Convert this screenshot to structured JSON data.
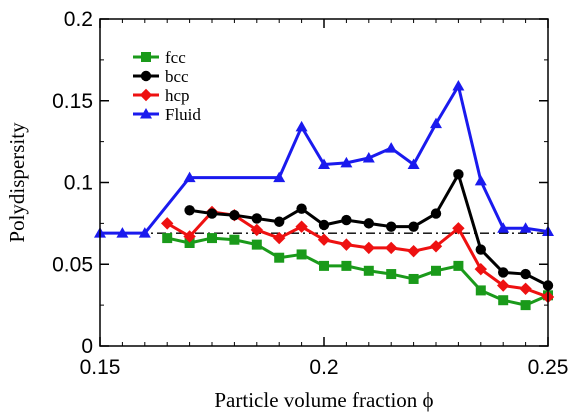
{
  "chart_data": {
    "type": "line",
    "xlabel": "Particle volume fraction ϕ",
    "ylabel": "Polydispersity",
    "xlim": [
      0.15,
      0.25
    ],
    "ylim": [
      0,
      0.2
    ],
    "x_ticks": [
      0.15,
      0.2,
      0.25
    ],
    "x_tick_labels": [
      "0.15",
      "0.2",
      "0.25"
    ],
    "y_ticks": [
      0,
      0.05,
      0.1,
      0.15,
      0.2
    ],
    "y_tick_labels": [
      "0",
      "0.05",
      "0.1",
      "0.15",
      "0.2"
    ],
    "grid": false,
    "legend_position": "top-left",
    "reference_line": {
      "y": 0.069,
      "style": "dash-dot",
      "color": "#000000"
    },
    "series": [
      {
        "name": "fcc",
        "color": "#1a9a1a",
        "marker": "square",
        "x": [
          0.165,
          0.17,
          0.175,
          0.18,
          0.185,
          0.19,
          0.195,
          0.2,
          0.205,
          0.21,
          0.215,
          0.22,
          0.225,
          0.23,
          0.235,
          0.24,
          0.245,
          0.25
        ],
        "y": [
          0.066,
          0.063,
          0.066,
          0.065,
          0.062,
          0.054,
          0.056,
          0.049,
          0.049,
          0.046,
          0.044,
          0.041,
          0.046,
          0.049,
          0.034,
          0.028,
          0.025,
          0.031
        ]
      },
      {
        "name": "bcc",
        "color": "#000000",
        "marker": "circle",
        "x": [
          0.17,
          0.175,
          0.18,
          0.185,
          0.19,
          0.195,
          0.2,
          0.205,
          0.21,
          0.215,
          0.22,
          0.225,
          0.23,
          0.235,
          0.24,
          0.245,
          0.25
        ],
        "y": [
          0.083,
          0.081,
          0.08,
          0.078,
          0.076,
          0.084,
          0.074,
          0.077,
          0.075,
          0.073,
          0.073,
          0.081,
          0.105,
          0.059,
          0.045,
          0.044,
          0.037
        ]
      },
      {
        "name": "hcp",
        "color": "#ee1111",
        "marker": "diamond",
        "x": [
          0.165,
          0.17,
          0.175,
          0.18,
          0.185,
          0.19,
          0.195,
          0.2,
          0.205,
          0.21,
          0.215,
          0.22,
          0.225,
          0.23,
          0.235,
          0.24,
          0.245,
          0.25
        ],
        "y": [
          0.075,
          0.067,
          0.082,
          0.08,
          0.071,
          0.066,
          0.073,
          0.065,
          0.062,
          0.06,
          0.06,
          0.058,
          0.061,
          0.072,
          0.047,
          0.037,
          0.035,
          0.03
        ]
      },
      {
        "name": "Fluid",
        "color": "#1a1aee",
        "marker": "triangle",
        "x": [
          0.15,
          0.155,
          0.16,
          0.17,
          0.19,
          0.195,
          0.2,
          0.205,
          0.21,
          0.215,
          0.22,
          0.225,
          0.23,
          0.235,
          0.24,
          0.245,
          0.25
        ],
        "y": [
          0.069,
          0.069,
          0.069,
          0.103,
          0.103,
          0.134,
          0.111,
          0.112,
          0.115,
          0.121,
          0.111,
          0.136,
          0.159,
          0.101,
          0.072,
          0.072,
          0.07
        ]
      }
    ]
  }
}
